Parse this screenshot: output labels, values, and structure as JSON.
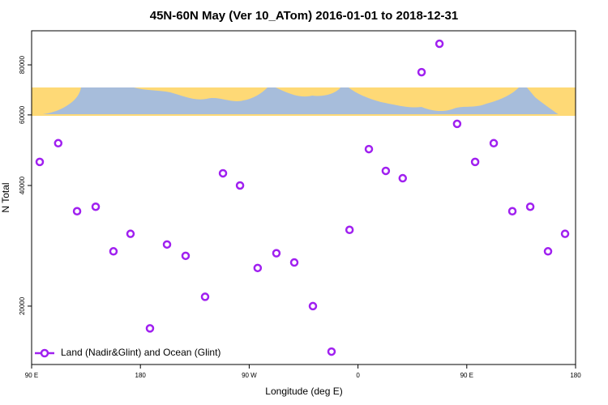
{
  "chart_data": {
    "type": "scatter",
    "title": "45N-60N May (Ver 10_ATom)   2016-01-01 to 2018-12-31",
    "x_label": "Longitude (deg E)",
    "y_label": "N Total",
    "log_y": true,
    "xlim": [
      90,
      540
    ],
    "ylim": [
      14300,
      97300
    ],
    "xticks": [
      {
        "value": 90,
        "label": "90 E"
      },
      180,
      {
        "value": 270,
        "label": "90 W"
      },
      {
        "value": 360,
        "label": "0"
      },
      {
        "value": 450,
        "label": "90 E"
      },
      {
        "value": 540,
        "label": "180"
      }
    ],
    "yticks": [
      20000,
      40000,
      60000,
      80000
    ],
    "legend": "bottom-left",
    "series": [
      {
        "name": "Land (Nadir&Glint) and Ocean (Glint)",
        "color": "#a020f0",
        "x": [
          96.7,
          112,
          127.6,
          143,
          157.7,
          171.8,
          187.9,
          202,
          217.4,
          233.5,
          248.3,
          262.4,
          277,
          292.5,
          307.3,
          322.7,
          338.1,
          353,
          369,
          383,
          397,
          412.6,
          427.4,
          442,
          456.9,
          472.3,
          487.7,
          502.5,
          517.2,
          531.3
        ],
        "values": [
          45800,
          51000,
          34500,
          35400,
          27400,
          30300,
          17600,
          28500,
          26700,
          21100,
          42900,
          40000,
          24900,
          27100,
          25700,
          20000,
          15400,
          31000,
          49300,
          43500,
          41700,
          76700,
          90300,
          57000,
          45800,
          51000,
          34500,
          35400,
          27400,
          30300
        ]
      }
    ]
  }
}
